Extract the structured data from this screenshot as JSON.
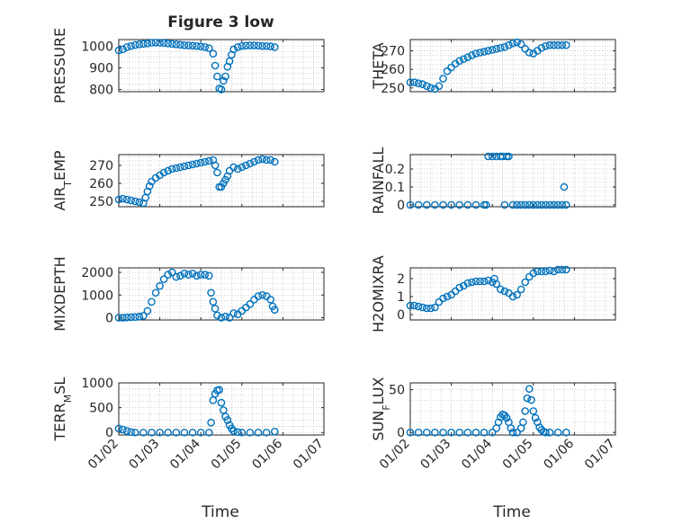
{
  "figure": {
    "title": "Figure 3 low"
  },
  "colors": {
    "marker": "#0072bd",
    "axis": "#262626",
    "grid": "#b0b0b0"
  },
  "x_axis": {
    "ticks": [
      "01/02",
      "01/03",
      "01/04",
      "01/05",
      "01/06",
      "01/07"
    ],
    "tick_values": [
      0,
      1,
      2,
      3,
      4,
      5
    ],
    "range": [
      0,
      5
    ],
    "label": "Time"
  },
  "chart_data": [
    {
      "type": "scatter",
      "ylabel": "PRESSURE",
      "ylim": [
        790,
        1030
      ],
      "yticks": [
        800,
        900,
        1000
      ],
      "grid": true,
      "x": [
        0.0,
        0.1,
        0.2,
        0.3,
        0.4,
        0.5,
        0.6,
        0.7,
        0.8,
        0.9,
        1.0,
        1.1,
        1.2,
        1.3,
        1.4,
        1.5,
        1.6,
        1.7,
        1.8,
        1.9,
        2.0,
        2.1,
        2.2,
        2.3,
        2.35,
        2.4,
        2.45,
        2.5,
        2.55,
        2.6,
        2.65,
        2.7,
        2.75,
        2.8,
        2.9,
        3.0,
        3.1,
        3.2,
        3.3,
        3.4,
        3.5,
        3.6,
        3.7,
        3.8
      ],
      "y": [
        980,
        985,
        995,
        1000,
        1005,
        1008,
        1010,
        1012,
        1015,
        1016,
        1015,
        1014,
        1012,
        1010,
        1008,
        1006,
        1004,
        1003,
        1002,
        1000,
        998,
        995,
        990,
        965,
        910,
        860,
        805,
        800,
        840,
        860,
        905,
        930,
        960,
        985,
        995,
        1000,
        1002,
        1003,
        1003,
        1002,
        1000,
        1000,
        998,
        995
      ]
    },
    {
      "type": "scatter",
      "ylabel": "THETA",
      "ylim": [
        248,
        276
      ],
      "yticks": [
        250,
        260,
        270
      ],
      "grid": true,
      "x": [
        0.0,
        0.1,
        0.2,
        0.3,
        0.4,
        0.5,
        0.6,
        0.7,
        0.8,
        0.9,
        1.0,
        1.1,
        1.2,
        1.3,
        1.4,
        1.5,
        1.6,
        1.7,
        1.8,
        1.9,
        2.0,
        2.1,
        2.2,
        2.3,
        2.4,
        2.5,
        2.6,
        2.7,
        2.8,
        2.9,
        3.0,
        3.1,
        3.2,
        3.3,
        3.4,
        3.5,
        3.6,
        3.7,
        3.8
      ],
      "y": [
        253,
        253,
        252.5,
        252,
        251,
        250,
        249.5,
        251,
        255,
        259,
        261,
        263,
        264.5,
        265.5,
        266.5,
        267.5,
        268.5,
        269,
        269.5,
        270,
        270.5,
        271,
        271.5,
        272,
        273,
        274,
        274.5,
        273.5,
        271,
        269,
        268.5,
        270,
        271.5,
        272.5,
        273,
        273,
        273,
        273,
        273
      ]
    },
    {
      "type": "scatter",
      "ylabel": "AIR_TEMP",
      "ylim": [
        247,
        276
      ],
      "yticks": [
        250,
        260,
        270
      ],
      "grid": true,
      "x": [
        0.0,
        0.1,
        0.2,
        0.3,
        0.4,
        0.5,
        0.6,
        0.65,
        0.7,
        0.75,
        0.8,
        0.9,
        1.0,
        1.1,
        1.2,
        1.3,
        1.4,
        1.5,
        1.6,
        1.7,
        1.8,
        1.9,
        2.0,
        2.1,
        2.2,
        2.3,
        2.35,
        2.4,
        2.45,
        2.5,
        2.55,
        2.6,
        2.65,
        2.7,
        2.8,
        2.9,
        3.0,
        3.1,
        3.2,
        3.3,
        3.4,
        3.5,
        3.6,
        3.7,
        3.8
      ],
      "y": [
        251,
        251.5,
        251,
        250.5,
        250,
        249.5,
        249,
        252,
        255.5,
        258.5,
        261,
        263,
        264.5,
        266,
        267,
        268,
        268.5,
        269,
        269.5,
        270,
        270.5,
        271,
        271.5,
        272,
        272.5,
        273,
        270,
        266,
        258,
        258,
        260,
        262,
        264,
        267,
        269,
        268,
        269,
        270,
        271,
        272,
        273,
        273.5,
        273,
        273,
        272
      ]
    },
    {
      "type": "scatter",
      "ylabel": "RAINFALL",
      "ylim": [
        -0.01,
        0.28
      ],
      "yticks": [
        0,
        0.1,
        0.2
      ],
      "grid": true,
      "x": [
        0.0,
        0.2,
        0.4,
        0.6,
        0.8,
        1.0,
        1.2,
        1.4,
        1.6,
        1.8,
        1.85,
        1.9,
        2.0,
        2.1,
        2.2,
        2.25,
        2.3,
        2.35,
        2.4,
        2.5,
        2.6,
        2.7,
        2.8,
        2.9,
        3.0,
        3.1,
        3.2,
        3.3,
        3.4,
        3.5,
        3.6,
        3.7,
        3.75,
        3.8
      ],
      "y": [
        0,
        0,
        0,
        0,
        0,
        0,
        0,
        0,
        0,
        0,
        0,
        0.27,
        0.27,
        0.27,
        0.27,
        0.27,
        0,
        0.27,
        0.27,
        0,
        0,
        0,
        0,
        0,
        0,
        0,
        0,
        0,
        0,
        0,
        0,
        0,
        0.1,
        0
      ]
    },
    {
      "type": "scatter",
      "ylabel": "MIXDEPTH",
      "ylim": [
        -100,
        2200
      ],
      "yticks": [
        0,
        1000,
        2000
      ],
      "grid": true,
      "x": [
        0.0,
        0.1,
        0.2,
        0.3,
        0.4,
        0.5,
        0.6,
        0.7,
        0.8,
        0.9,
        1.0,
        1.1,
        1.2,
        1.3,
        1.4,
        1.5,
        1.6,
        1.7,
        1.8,
        1.9,
        2.0,
        2.1,
        2.2,
        2.25,
        2.3,
        2.35,
        2.4,
        2.5,
        2.6,
        2.7,
        2.8,
        2.9,
        3.0,
        3.1,
        3.2,
        3.3,
        3.4,
        3.5,
        3.6,
        3.7,
        3.75,
        3.8
      ],
      "y": [
        0,
        0,
        10,
        20,
        30,
        50,
        80,
        300,
        700,
        1100,
        1400,
        1700,
        1900,
        2000,
        1800,
        1850,
        1950,
        1900,
        1950,
        1850,
        1900,
        1900,
        1850,
        1100,
        700,
        400,
        100,
        0,
        50,
        0,
        200,
        150,
        300,
        450,
        600,
        800,
        950,
        1000,
        950,
        800,
        500,
        350
      ]
    },
    {
      "type": "scatter",
      "ylabel": "H2OMIXRA",
      "ylim": [
        -0.3,
        2.6
      ],
      "yticks": [
        0,
        1,
        2
      ],
      "grid": true,
      "x": [
        0.0,
        0.1,
        0.2,
        0.3,
        0.4,
        0.5,
        0.6,
        0.7,
        0.8,
        0.9,
        1.0,
        1.1,
        1.2,
        1.3,
        1.4,
        1.5,
        1.6,
        1.7,
        1.8,
        1.9,
        2.0,
        2.05,
        2.1,
        2.2,
        2.3,
        2.4,
        2.5,
        2.6,
        2.7,
        2.8,
        2.9,
        3.0,
        3.1,
        3.2,
        3.3,
        3.4,
        3.5,
        3.6,
        3.7,
        3.8
      ],
      "y": [
        0.5,
        0.5,
        0.45,
        0.4,
        0.35,
        0.35,
        0.4,
        0.7,
        0.9,
        1.0,
        1.1,
        1.3,
        1.5,
        1.6,
        1.75,
        1.8,
        1.85,
        1.85,
        1.85,
        1.9,
        1.8,
        2.0,
        1.7,
        1.4,
        1.3,
        1.2,
        1.0,
        1.1,
        1.4,
        1.8,
        2.1,
        2.3,
        2.4,
        2.4,
        2.4,
        2.45,
        2.4,
        2.5,
        2.5,
        2.5
      ]
    },
    {
      "type": "scatter",
      "ylabel": "TERR_MSL",
      "ylim": [
        -50,
        1000
      ],
      "yticks": [
        0,
        500,
        1000
      ],
      "grid": true,
      "x": [
        0.0,
        0.1,
        0.2,
        0.3,
        0.4,
        0.6,
        0.8,
        1.0,
        1.2,
        1.4,
        1.6,
        1.8,
        2.0,
        2.2,
        2.25,
        2.3,
        2.35,
        2.4,
        2.45,
        2.5,
        2.55,
        2.6,
        2.65,
        2.7,
        2.75,
        2.8,
        2.9,
        3.0,
        3.2,
        3.4,
        3.6,
        3.8
      ],
      "y": [
        80,
        60,
        30,
        10,
        0,
        0,
        0,
        0,
        0,
        0,
        0,
        0,
        0,
        0,
        200,
        650,
        780,
        850,
        860,
        600,
        450,
        320,
        250,
        150,
        80,
        30,
        10,
        0,
        0,
        0,
        0,
        20
      ]
    },
    {
      "type": "scatter",
      "ylabel": "SUN_FLUX",
      "ylim": [
        -3,
        58
      ],
      "yticks": [
        0,
        50
      ],
      "grid": true,
      "x": [
        0.0,
        0.2,
        0.4,
        0.6,
        0.8,
        1.0,
        1.2,
        1.4,
        1.6,
        1.8,
        2.0,
        2.1,
        2.15,
        2.2,
        2.25,
        2.3,
        2.35,
        2.4,
        2.45,
        2.5,
        2.6,
        2.7,
        2.75,
        2.8,
        2.85,
        2.9,
        2.95,
        3.0,
        3.05,
        3.1,
        3.15,
        3.2,
        3.25,
        3.3,
        3.4,
        3.6,
        3.8
      ],
      "y": [
        0,
        0,
        0,
        0,
        0,
        0,
        0,
        0,
        0,
        0,
        0,
        5,
        12,
        18,
        21,
        20,
        17,
        12,
        5,
        0,
        0,
        5,
        12,
        25,
        40,
        51,
        38,
        25,
        17,
        12,
        6,
        3,
        1,
        0,
        0,
        0,
        0
      ]
    }
  ]
}
